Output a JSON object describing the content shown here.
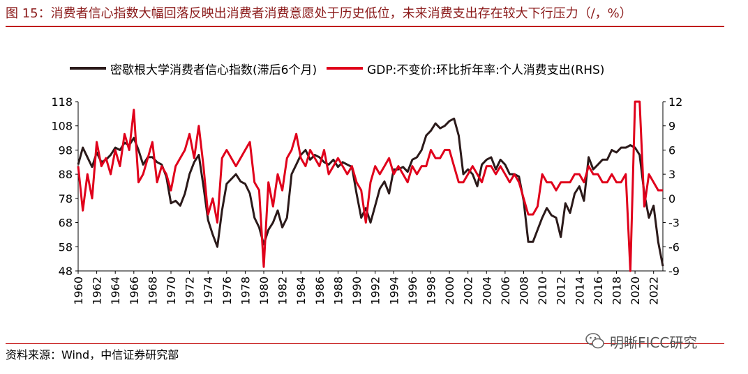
{
  "header": {
    "title": "图 15：消费者信心指数大幅回落反映出消费者消费意愿处于历史低位，未来消费支出存在较大下行压力（/，%）"
  },
  "footer": {
    "source": "资料来源：Wind，中信证券研究部",
    "watermark": "明晰FICC研究"
  },
  "colors": {
    "title": "#8b1a1a",
    "rule": "#c00000",
    "sentiment": "#2b1a1a",
    "gdp": "#e0001b"
  },
  "chart_data": {
    "type": "line",
    "title": "",
    "xlabel": "",
    "ylabel": "",
    "ylabel_right": "",
    "xlim": [
      1960,
      2023
    ],
    "ylim": [
      48,
      118
    ],
    "ylim_right": [
      -9,
      12
    ],
    "x_ticks": [
      "1960",
      "1962",
      "1964",
      "1966",
      "1968",
      "1970",
      "1972",
      "1974",
      "1976",
      "1978",
      "1980",
      "1982",
      "1984",
      "1986",
      "1988",
      "1990",
      "1992",
      "1994",
      "1996",
      "1998",
      "2000",
      "2002",
      "2004",
      "2006",
      "2008",
      "2010",
      "2012",
      "2014",
      "2016",
      "2018",
      "2020",
      "2022"
    ],
    "y_ticks_left": [
      "118",
      "108",
      "98",
      "88",
      "78",
      "68",
      "58",
      "48"
    ],
    "y_ticks_right": [
      "12",
      "9",
      "6",
      "3",
      "0",
      "-3",
      "-6",
      "-9"
    ],
    "legend": [
      "密歇根大学消费者信心指数(滞后6个月)",
      "GDP:不变价:环比折年率:个人消费支出(RHS)"
    ],
    "series": [
      {
        "name": "密歇根大学消费者信心指数(滞后6个月)",
        "axis": "left",
        "x": [
          1960,
          1960.5,
          1961,
          1961.5,
          1962,
          1962.5,
          1963,
          1963.5,
          1964,
          1964.5,
          1965,
          1965.5,
          1966,
          1966.5,
          1967,
          1967.5,
          1968,
          1968.5,
          1969,
          1969.5,
          1970,
          1970.5,
          1971,
          1971.5,
          1972,
          1972.5,
          1973,
          1973.5,
          1974,
          1974.5,
          1975,
          1975.5,
          1976,
          1976.5,
          1977,
          1977.5,
          1978,
          1978.5,
          1979,
          1979.5,
          1980,
          1980.5,
          1981,
          1981.5,
          1982,
          1982.5,
          1983,
          1983.5,
          1984,
          1984.5,
          1985,
          1985.5,
          1986,
          1986.5,
          1987,
          1987.5,
          1988,
          1988.5,
          1989,
          1989.5,
          1990,
          1990.5,
          1991,
          1991.5,
          1992,
          1992.5,
          1993,
          1993.5,
          1994,
          1994.5,
          1995,
          1995.5,
          1996,
          1996.5,
          1997,
          1997.5,
          1998,
          1998.5,
          1999,
          1999.5,
          2000,
          2000.5,
          2001,
          2001.5,
          2002,
          2002.5,
          2003,
          2003.5,
          2004,
          2004.5,
          2005,
          2005.5,
          2006,
          2006.5,
          2007,
          2007.5,
          2008,
          2008.5,
          2009,
          2009.5,
          2010,
          2010.5,
          2011,
          2011.5,
          2012,
          2012.5,
          2013,
          2013.5,
          2014,
          2014.5,
          2015,
          2015.5,
          2016,
          2016.5,
          2017,
          2017.5,
          2018,
          2018.5,
          2019,
          2019.5,
          2020,
          2020.5,
          2021,
          2021.5,
          2022,
          2022.5,
          2023
        ],
        "values": [
          92,
          99,
          95,
          91,
          97,
          93,
          94,
          96,
          99,
          98,
          101,
          100,
          103,
          98,
          92,
          95,
          95,
          93,
          92,
          87,
          76,
          77,
          75,
          80,
          88,
          93,
          96,
          83,
          69,
          63,
          58,
          73,
          84,
          86,
          88,
          85,
          84,
          80,
          70,
          66,
          59,
          65,
          68,
          73,
          66,
          70,
          88,
          92,
          96,
          98,
          94,
          96,
          95,
          93,
          92,
          94,
          91,
          93,
          92,
          91,
          80,
          70,
          74,
          68,
          75,
          82,
          85,
          80,
          90,
          90,
          91,
          89,
          94,
          95,
          98,
          104,
          106,
          109,
          107,
          108,
          110,
          111,
          104,
          88,
          90,
          88,
          83,
          92,
          94,
          95,
          90,
          94,
          92,
          88,
          88,
          87,
          77,
          60,
          60,
          65,
          70,
          74,
          71,
          70,
          62,
          76,
          72,
          80,
          83,
          77,
          95,
          90,
          92,
          94,
          94,
          98,
          97,
          99,
          99,
          100,
          99,
          96,
          80,
          70,
          75,
          60,
          50
        ]
      },
      {
        "name": "GDP:不变价:环比折年率:个人消费支出(RHS)",
        "axis": "right",
        "x": [
          1960,
          1960.5,
          1961,
          1961.5,
          1962,
          1962.5,
          1963,
          1963.5,
          1964,
          1964.5,
          1965,
          1965.5,
          1966,
          1966.5,
          1967,
          1967.5,
          1968,
          1968.5,
          1969,
          1969.5,
          1970,
          1970.5,
          1971,
          1971.5,
          1972,
          1972.5,
          1973,
          1973.5,
          1974,
          1974.5,
          1975,
          1975.5,
          1976,
          1976.5,
          1977,
          1977.5,
          1978,
          1978.5,
          1979,
          1979.5,
          1980,
          1980.5,
          1981,
          1981.5,
          1982,
          1982.5,
          1983,
          1983.5,
          1984,
          1984.5,
          1985,
          1985.5,
          1986,
          1986.5,
          1987,
          1987.5,
          1988,
          1988.5,
          1989,
          1989.5,
          1990,
          1990.5,
          1991,
          1991.5,
          1992,
          1992.5,
          1993,
          1993.5,
          1994,
          1994.5,
          1995,
          1995.5,
          1996,
          1996.5,
          1997,
          1997.5,
          1998,
          1998.5,
          1999,
          1999.5,
          2000,
          2000.5,
          2001,
          2001.5,
          2002,
          2002.5,
          2003,
          2003.5,
          2004,
          2004.5,
          2005,
          2005.5,
          2006,
          2006.5,
          2007,
          2007.5,
          2008,
          2008.5,
          2009,
          2009.5,
          2010,
          2010.5,
          2011,
          2011.5,
          2012,
          2012.5,
          2013,
          2013.5,
          2014,
          2014.5,
          2015,
          2015.5,
          2016,
          2016.5,
          2017,
          2017.5,
          2018,
          2018.5,
          2019,
          2019.5,
          2020,
          2020.5,
          2021,
          2021.5,
          2022,
          2022.5,
          2023
        ],
        "values": [
          4,
          -1.5,
          3,
          0,
          7,
          4,
          5,
          3,
          6,
          4,
          8,
          6,
          11,
          2,
          3,
          5,
          7,
          2,
          4,
          3,
          1,
          4,
          5,
          6,
          8,
          5,
          9,
          4,
          -2,
          0,
          -3,
          5,
          6,
          5,
          4,
          5,
          6,
          7,
          2,
          1,
          -8.5,
          2,
          -1,
          3,
          1,
          5,
          6,
          8,
          5,
          4,
          6,
          5,
          4,
          6,
          3,
          4,
          5,
          4,
          3,
          4,
          2,
          1,
          -3,
          2,
          4,
          3,
          4,
          5,
          3,
          4,
          3,
          2,
          4,
          3,
          4,
          4,
          6,
          5,
          5,
          6,
          6,
          4,
          2,
          2,
          3,
          4,
          3,
          2,
          4,
          4,
          3,
          4,
          3,
          2,
          3,
          2,
          0,
          -2,
          -2,
          -1,
          3,
          2,
          2,
          1,
          2,
          2,
          2,
          3,
          3,
          2,
          4,
          3,
          3,
          2,
          2,
          3,
          2,
          2,
          3,
          -9,
          12,
          12,
          -1,
          3,
          2,
          1,
          1
        ]
      }
    ]
  }
}
